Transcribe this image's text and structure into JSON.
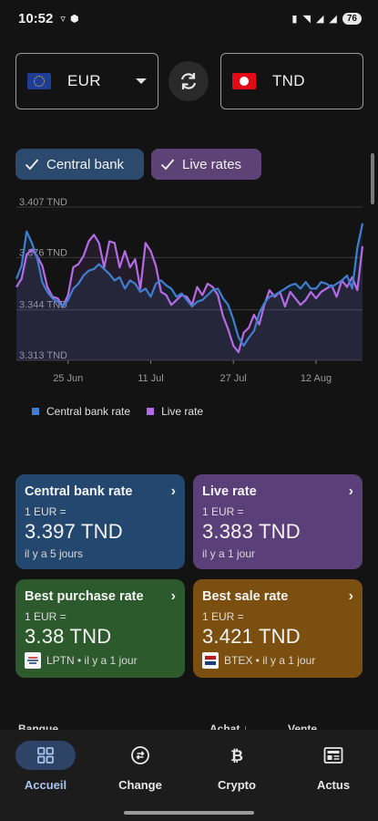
{
  "status_bar": {
    "time": "10:52",
    "battery": "76"
  },
  "converter": {
    "from_code": "EUR",
    "to_code": "TND",
    "from_flag": "eu-flag-icon",
    "to_flag": "tn-flag-icon"
  },
  "chips": [
    {
      "label": "Central bank",
      "color": "#2c4a6e"
    },
    {
      "label": "Live rates",
      "color": "#5d4275"
    }
  ],
  "chart_data": {
    "type": "line",
    "ylim": [
      3.313,
      3.407
    ],
    "y_ticks": [
      "3.407 TND",
      "3.376 TND",
      "3.344 TND",
      "3.313 TND"
    ],
    "y_tick_values": [
      3.407,
      3.376,
      3.344,
      3.313
    ],
    "x_ticks": [
      "25 Jun",
      "11 Jul",
      "27 Jul",
      "12 Aug"
    ],
    "x_tick_index": [
      10,
      26,
      42,
      58
    ],
    "grid": true,
    "legend_placement": "bottom",
    "series": [
      {
        "name": "Central bank rate",
        "color": "#3d7fd1",
        "values": [
          3.363,
          3.371,
          3.392,
          3.385,
          3.376,
          3.361,
          3.355,
          3.351,
          3.349,
          3.346,
          3.35,
          3.357,
          3.36,
          3.365,
          3.368,
          3.369,
          3.372,
          3.369,
          3.366,
          3.362,
          3.364,
          3.357,
          3.362,
          3.36,
          3.355,
          3.357,
          3.352,
          3.36,
          3.362,
          3.359,
          3.357,
          3.352,
          3.354,
          3.35,
          3.346,
          3.349,
          3.35,
          3.353,
          3.356,
          3.357,
          3.351,
          3.347,
          3.338,
          3.327,
          3.322,
          3.327,
          3.331,
          3.342,
          3.348,
          3.352,
          3.353,
          3.355,
          3.357,
          3.359,
          3.36,
          3.357,
          3.361,
          3.357,
          3.357,
          3.361,
          3.36,
          3.358,
          3.36,
          3.362,
          3.365,
          3.357,
          3.382,
          3.397
        ]
      },
      {
        "name": "Live rate",
        "color": "#b56be6",
        "values": [
          3.358,
          3.363,
          3.378,
          3.381,
          3.377,
          3.371,
          3.358,
          3.352,
          3.351,
          3.346,
          3.353,
          3.37,
          3.372,
          3.377,
          3.386,
          3.39,
          3.385,
          3.37,
          3.386,
          3.385,
          3.37,
          3.38,
          3.37,
          3.375,
          3.357,
          3.385,
          3.38,
          3.371,
          3.355,
          3.353,
          3.347,
          3.35,
          3.353,
          3.352,
          3.347,
          3.358,
          3.353,
          3.36,
          3.358,
          3.353,
          3.34,
          3.332,
          3.322,
          3.318,
          3.33,
          3.333,
          3.341,
          3.335,
          3.347,
          3.356,
          3.352,
          3.355,
          3.346,
          3.355,
          3.351,
          3.347,
          3.35,
          3.355,
          3.351,
          3.355,
          3.357,
          3.359,
          3.352,
          3.362,
          3.358,
          3.364,
          3.356,
          3.383
        ]
      }
    ]
  },
  "legend": [
    {
      "label": "Central bank rate",
      "color": "#3d7fd1"
    },
    {
      "label": "Live rate",
      "color": "#b56be6"
    }
  ],
  "cards": {
    "central_bank": {
      "title": "Central bank rate",
      "sub": "1 EUR =",
      "value": "3.397 TND",
      "meta": "il y a 5 jours"
    },
    "live": {
      "title": "Live rate",
      "sub": "1 EUR =",
      "value": "3.383 TND",
      "meta": "il y a 1 jour"
    },
    "best_purchase": {
      "title": "Best purchase rate",
      "sub": "1 EUR =",
      "value": "3.38 TND",
      "meta": "LPTN • il y a 1 jour"
    },
    "best_sale": {
      "title": "Best sale rate",
      "sub": "1 EUR =",
      "value": "3.421 TND",
      "meta": "BTEX • il y a 1 jour"
    }
  },
  "table_header": {
    "bank": "Banque",
    "buy": "Achat ↓",
    "sell": "Vente"
  },
  "nav": [
    {
      "label": "Accueil",
      "icon": "grid-icon",
      "active": true
    },
    {
      "label": "Change",
      "icon": "exchange-icon",
      "active": false
    },
    {
      "label": "Crypto",
      "icon": "bitcoin-icon",
      "active": false
    },
    {
      "label": "Actus",
      "icon": "newspaper-icon",
      "active": false
    }
  ]
}
